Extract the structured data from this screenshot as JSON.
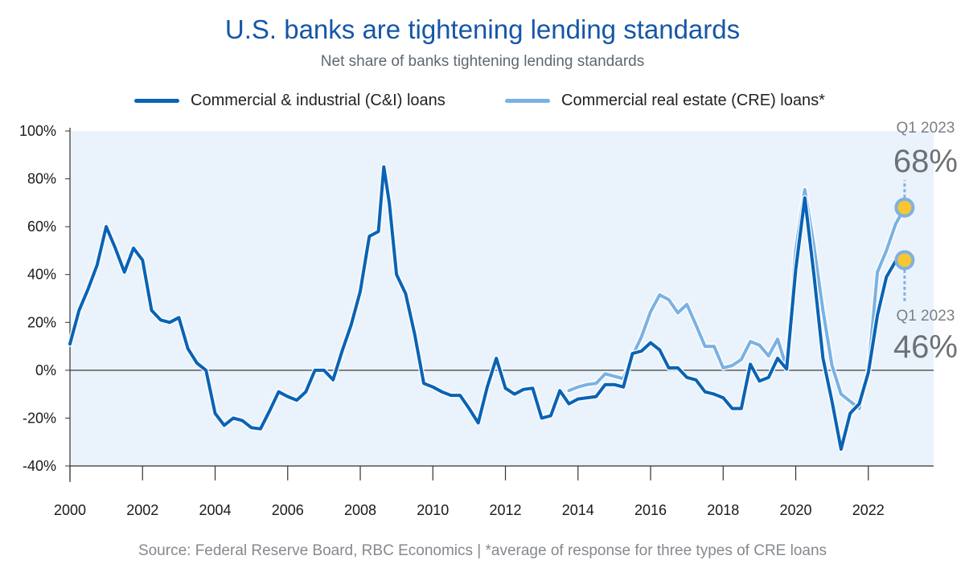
{
  "chart_data": {
    "type": "line",
    "title": "U.S. banks are tightening lending standards",
    "subtitle": "Net share of banks tightening lending standards",
    "xlabel": "",
    "ylabel": "",
    "ylim": [
      -40,
      100
    ],
    "yticks": [
      "100%",
      "80%",
      "60%",
      "40%",
      "20%",
      "0%",
      "-20%",
      "-40%"
    ],
    "ytick_values": [
      100,
      80,
      60,
      40,
      20,
      0,
      -20,
      -40
    ],
    "xlim": [
      2000,
      2023.8
    ],
    "xticks": [
      "2000",
      "2002",
      "2004",
      "2006",
      "2008",
      "2010",
      "2012",
      "2014",
      "2016",
      "2018",
      "2020",
      "2022"
    ],
    "xtick_values": [
      2000,
      2002,
      2004,
      2006,
      2008,
      2010,
      2012,
      2014,
      2016,
      2018,
      2020,
      2022
    ],
    "legend_position": "top",
    "series": [
      {
        "name": "Commercial & industrial (C&I) loans",
        "color": "#0a63b5",
        "points": [
          [
            2000.0,
            11
          ],
          [
            2000.25,
            25
          ],
          [
            2000.5,
            34
          ],
          [
            2000.75,
            44
          ],
          [
            2001.0,
            60
          ],
          [
            2001.25,
            51
          ],
          [
            2001.5,
            41
          ],
          [
            2001.75,
            51
          ],
          [
            2002.0,
            46
          ],
          [
            2002.25,
            25
          ],
          [
            2002.5,
            21
          ],
          [
            2002.75,
            20
          ],
          [
            2003.0,
            22
          ],
          [
            2003.25,
            9
          ],
          [
            2003.5,
            3
          ],
          [
            2003.75,
            0
          ],
          [
            2004.0,
            -18
          ],
          [
            2004.25,
            -23
          ],
          [
            2004.5,
            -20
          ],
          [
            2004.75,
            -21
          ],
          [
            2005.0,
            -24
          ],
          [
            2005.25,
            -24.5
          ],
          [
            2005.5,
            -17
          ],
          [
            2005.75,
            -9
          ],
          [
            2006.0,
            -11
          ],
          [
            2006.25,
            -12.5
          ],
          [
            2006.5,
            -9
          ],
          [
            2006.75,
            0
          ],
          [
            2007.0,
            0
          ],
          [
            2007.25,
            -4
          ],
          [
            2007.5,
            8
          ],
          [
            2007.75,
            19
          ],
          [
            2008.0,
            33
          ],
          [
            2008.25,
            56
          ],
          [
            2008.5,
            58
          ],
          [
            2008.65,
            85
          ],
          [
            2008.8,
            70
          ],
          [
            2009.0,
            40
          ],
          [
            2009.25,
            32
          ],
          [
            2009.5,
            15
          ],
          [
            2009.75,
            -5.5
          ],
          [
            2010.0,
            -7
          ],
          [
            2010.25,
            -9
          ],
          [
            2010.5,
            -10.5
          ],
          [
            2010.75,
            -10.5
          ],
          [
            2011.0,
            -16
          ],
          [
            2011.25,
            -22
          ],
          [
            2011.5,
            -7
          ],
          [
            2011.75,
            5
          ],
          [
            2012.0,
            -7.5
          ],
          [
            2012.25,
            -10
          ],
          [
            2012.5,
            -8
          ],
          [
            2012.75,
            -7.5
          ],
          [
            2013.0,
            -20
          ],
          [
            2013.25,
            -19
          ],
          [
            2013.5,
            -8.5
          ],
          [
            2013.75,
            -14
          ],
          [
            2014.0,
            -12
          ],
          [
            2014.25,
            -11.5
          ],
          [
            2014.5,
            -11
          ],
          [
            2014.75,
            -6
          ],
          [
            2015.0,
            -6
          ],
          [
            2015.25,
            -7
          ],
          [
            2015.5,
            7
          ],
          [
            2015.75,
            8
          ],
          [
            2016.0,
            11.5
          ],
          [
            2016.25,
            8.5
          ],
          [
            2016.5,
            1
          ],
          [
            2016.75,
            1
          ],
          [
            2017.0,
            -3
          ],
          [
            2017.25,
            -4
          ],
          [
            2017.5,
            -9
          ],
          [
            2017.75,
            -10
          ],
          [
            2018.0,
            -11.5
          ],
          [
            2018.25,
            -16
          ],
          [
            2018.5,
            -16
          ],
          [
            2018.75,
            2.5
          ],
          [
            2019.0,
            -4.5
          ],
          [
            2019.25,
            -3
          ],
          [
            2019.5,
            5
          ],
          [
            2019.75,
            0.5
          ],
          [
            2020.0,
            42
          ],
          [
            2020.25,
            72
          ],
          [
            2020.5,
            40
          ],
          [
            2020.75,
            5
          ],
          [
            2021.0,
            -13
          ],
          [
            2021.25,
            -33
          ],
          [
            2021.5,
            -18
          ],
          [
            2021.75,
            -14
          ],
          [
            2022.0,
            -1
          ],
          [
            2022.25,
            23
          ],
          [
            2022.5,
            39
          ],
          [
            2022.75,
            45.5
          ]
        ]
      },
      {
        "name": "Commercial real estate (CRE) loans*",
        "color": "#7bb1e3",
        "points": [
          [
            2013.75,
            -8.5
          ],
          [
            2014.0,
            -7
          ],
          [
            2014.25,
            -6
          ],
          [
            2014.5,
            -5.5
          ],
          [
            2014.75,
            -1.5
          ],
          [
            2015.0,
            -2.5
          ],
          [
            2015.25,
            -3.5
          ],
          [
            2015.5,
            6
          ],
          [
            2015.75,
            14
          ],
          [
            2016.0,
            24.5
          ],
          [
            2016.25,
            31.5
          ],
          [
            2016.5,
            29.5
          ],
          [
            2016.75,
            24
          ],
          [
            2017.0,
            27.5
          ],
          [
            2017.25,
            19
          ],
          [
            2017.5,
            10
          ],
          [
            2017.75,
            10
          ],
          [
            2018.0,
            1
          ],
          [
            2018.25,
            2
          ],
          [
            2018.5,
            4.5
          ],
          [
            2018.75,
            12
          ],
          [
            2019.0,
            10.5
          ],
          [
            2019.25,
            6
          ],
          [
            2019.5,
            13
          ],
          [
            2019.75,
            1
          ],
          [
            2020.0,
            50
          ],
          [
            2020.25,
            75.5
          ],
          [
            2020.5,
            52
          ],
          [
            2020.75,
            25
          ],
          [
            2021.0,
            2
          ],
          [
            2021.25,
            -10
          ],
          [
            2021.5,
            -13
          ],
          [
            2021.75,
            -16
          ],
          [
            2022.0,
            0
          ],
          [
            2022.25,
            41
          ],
          [
            2022.5,
            50
          ],
          [
            2022.75,
            61
          ],
          [
            2023.0,
            68
          ]
        ]
      }
    ],
    "annotations": [
      {
        "series": "Commercial real estate (CRE) loans*",
        "x": 2023.0,
        "y": 68,
        "period": "Q1 2023",
        "value": "68%",
        "placement": "above"
      },
      {
        "series": "Commercial & industrial (C&I) loans",
        "x": 2023.0,
        "y": 46,
        "period": "Q1 2023",
        "value": "46%",
        "placement": "below"
      }
    ],
    "background_color": "#eaf3fc",
    "marker_color": "#f7c631",
    "marker_ring_color": "#7fb1e0"
  },
  "source": "Source: Federal Reserve Board, RBC Economics | *average of response for three types of CRE loans"
}
